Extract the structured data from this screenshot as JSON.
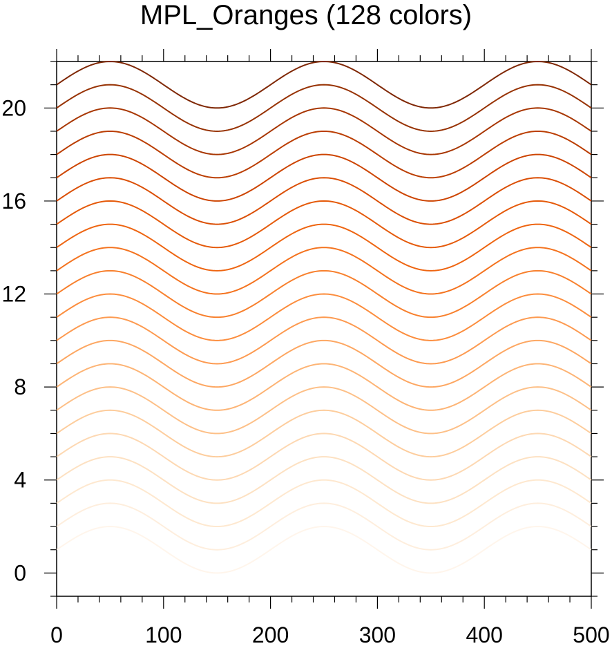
{
  "chart_data": {
    "type": "line",
    "title": "MPL_Oranges (128 colors)",
    "xlabel": "",
    "ylabel": "",
    "xlim": [
      0,
      500
    ],
    "ylim": [
      -1,
      22
    ],
    "x_ticks": [
      "0",
      "100",
      "200",
      "300",
      "400",
      "500"
    ],
    "y_ticks": [
      "0",
      "4",
      "8",
      "12",
      "16",
      "20"
    ],
    "grid": false,
    "legend": "none",
    "curve": "y = offset + sin(2*pi*x/200)",
    "series": [
      {
        "offset": 1,
        "color": "#fff5eb"
      },
      {
        "offset": 2,
        "color": "#feeedd"
      },
      {
        "offset": 3,
        "color": "#fee8cf"
      },
      {
        "offset": 4,
        "color": "#fde1c2"
      },
      {
        "offset": 5,
        "color": "#fdd8b2"
      },
      {
        "offset": 6,
        "color": "#fdcd9d"
      },
      {
        "offset": 7,
        "color": "#fdc088"
      },
      {
        "offset": 8,
        "color": "#fdb475"
      },
      {
        "offset": 9,
        "color": "#fda762"
      },
      {
        "offset": 10,
        "color": "#fd9a50"
      },
      {
        "offset": 11,
        "color": "#fc8d3d"
      },
      {
        "offset": 12,
        "color": "#f8802d"
      },
      {
        "offset": 13,
        "color": "#f4731f"
      },
      {
        "offset": 14,
        "color": "#ee6511"
      },
      {
        "offset": 15,
        "color": "#e55a0a"
      },
      {
        "offset": 16,
        "color": "#db4f05"
      },
      {
        "offset": 17,
        "color": "#cd4502"
      },
      {
        "offset": 18,
        "color": "#bb3e02"
      },
      {
        "offset": 19,
        "color": "#a83703"
      },
      {
        "offset": 20,
        "color": "#973203"
      },
      {
        "offset": 21,
        "color": "#7f2704"
      }
    ]
  }
}
